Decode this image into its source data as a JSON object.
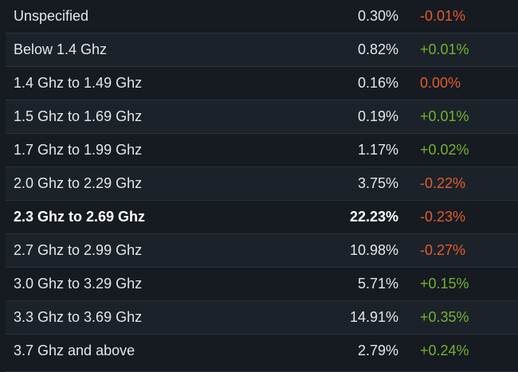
{
  "colors": {
    "background": "#161a21",
    "row_alt": "#1c222a",
    "text": "#e4e7ea",
    "positive": "#73b12f",
    "negative": "#e05d29"
  },
  "rows": [
    {
      "label": "Unspecified",
      "percent": "0.30%",
      "change": "-0.01%",
      "trend": "negative"
    },
    {
      "label": "Below 1.4 Ghz",
      "percent": "0.82%",
      "change": "+0.01%",
      "trend": "positive"
    },
    {
      "label": "1.4 Ghz to 1.49 Ghz",
      "percent": "0.16%",
      "change": "0.00%",
      "trend": "negative"
    },
    {
      "label": "1.5 Ghz to 1.69 Ghz",
      "percent": "0.19%",
      "change": "+0.01%",
      "trend": "positive"
    },
    {
      "label": "1.7 Ghz to 1.99 Ghz",
      "percent": "1.17%",
      "change": "+0.02%",
      "trend": "positive"
    },
    {
      "label": "2.0 Ghz to 2.29 Ghz",
      "percent": "3.75%",
      "change": "-0.22%",
      "trend": "negative"
    },
    {
      "label": "2.3 Ghz to 2.69 Ghz",
      "percent": "22.23%",
      "change": "-0.23%",
      "trend": "negative",
      "highlight": true
    },
    {
      "label": "2.7 Ghz to 2.99 Ghz",
      "percent": "10.98%",
      "change": "-0.27%",
      "trend": "negative"
    },
    {
      "label": "3.0 Ghz to 3.29 Ghz",
      "percent": "5.71%",
      "change": "+0.15%",
      "trend": "positive"
    },
    {
      "label": "3.3 Ghz to 3.69 Ghz",
      "percent": "14.91%",
      "change": "+0.35%",
      "trend": "positive"
    },
    {
      "label": "3.7 Ghz and above",
      "percent": "2.79%",
      "change": "+0.24%",
      "trend": "positive"
    }
  ]
}
